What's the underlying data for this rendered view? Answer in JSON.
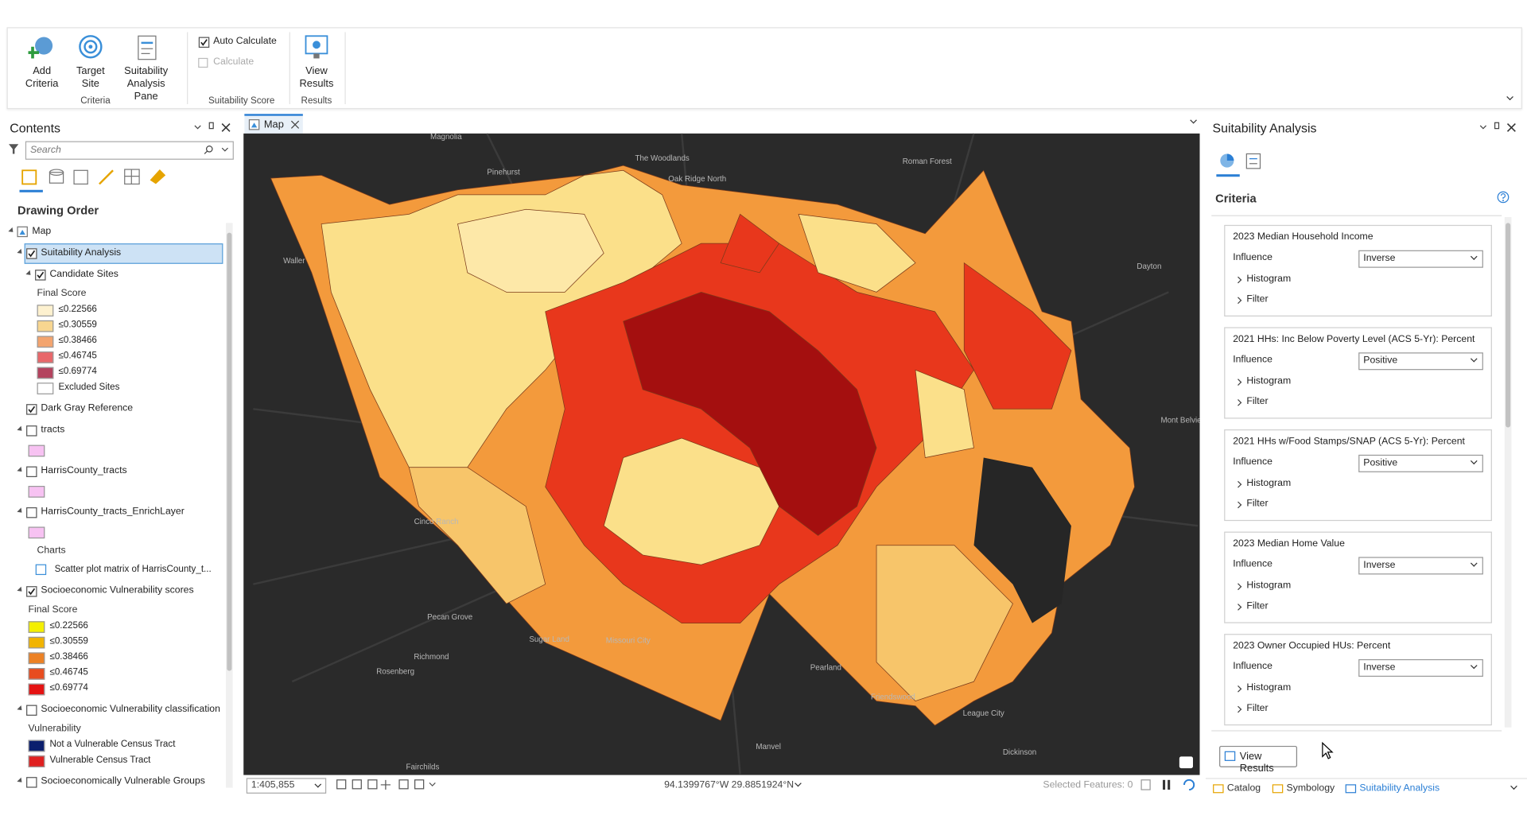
{
  "ribbon": {
    "groups": [
      {
        "label": "Criteria",
        "buttons": [
          "Add Criteria",
          "Target Site",
          "Suitability Analysis Pane"
        ]
      },
      {
        "label": "Suitability Score",
        "auto_calculate": {
          "text": "Auto Calculate",
          "checked": true
        },
        "calculate": {
          "text": "Calculate",
          "enabled": false
        }
      },
      {
        "label": "Results",
        "buttons": [
          "View Results"
        ]
      }
    ]
  },
  "contents": {
    "title": "Contents",
    "search_placeholder": "Search",
    "drawing_order": "Drawing Order",
    "items": [
      {
        "kind": "map",
        "label": "Map",
        "level": 0
      },
      {
        "kind": "layer",
        "label": "Suitability Analysis",
        "level": 1,
        "checked": true,
        "expanded": true,
        "selected": true
      },
      {
        "kind": "layer",
        "label": "Candidate Sites",
        "level": 2,
        "checked": true,
        "expanded": true
      },
      {
        "kind": "heading",
        "label": "Final Score",
        "level": 2
      },
      {
        "kind": "legend",
        "label": "≤0.22566",
        "level": 2,
        "color": "#fdf1cf"
      },
      {
        "kind": "legend",
        "label": "≤0.30559",
        "level": 2,
        "color": "#f8d690"
      },
      {
        "kind": "legend",
        "label": "≤0.38466",
        "level": 2,
        "color": "#f3a46e"
      },
      {
        "kind": "legend",
        "label": "≤0.46745",
        "level": 2,
        "color": "#e8676a"
      },
      {
        "kind": "legend",
        "label": "≤0.69774",
        "level": 2,
        "color": "#b4425e"
      },
      {
        "kind": "legend",
        "label": "Excluded Sites",
        "level": 2,
        "color": "#ffffff"
      },
      {
        "kind": "layer",
        "label": "Dark Gray Reference",
        "level": 1,
        "checked": true
      },
      {
        "kind": "layer",
        "label": "tracts",
        "level": 1,
        "checked": false,
        "expanded": true
      },
      {
        "kind": "swatch",
        "level": 1,
        "color": "#f7c2f2"
      },
      {
        "kind": "layer",
        "label": "HarrisCounty_tracts",
        "level": 1,
        "checked": false,
        "expanded": true
      },
      {
        "kind": "swatch",
        "level": 1,
        "color": "#f7c2f2"
      },
      {
        "kind": "layer",
        "label": "HarrisCounty_tracts_EnrichLayer",
        "level": 1,
        "checked": false,
        "expanded": true
      },
      {
        "kind": "swatch",
        "level": 1,
        "color": "#f7c2f2"
      },
      {
        "kind": "heading",
        "label": "Charts",
        "level": 2
      },
      {
        "kind": "chart",
        "label": "Scatter plot matrix of HarrisCounty_t...",
        "level": 2
      },
      {
        "kind": "layer",
        "label": "Socioeconomic Vulnerability scores",
        "level": 1,
        "checked": true,
        "expanded": true
      },
      {
        "kind": "heading",
        "label": "Final Score",
        "level": 1
      },
      {
        "kind": "legend",
        "label": "≤0.22566",
        "level": 1,
        "color": "#f4ef00"
      },
      {
        "kind": "legend",
        "label": "≤0.30559",
        "level": 1,
        "color": "#f1b400"
      },
      {
        "kind": "legend",
        "label": "≤0.38466",
        "level": 1,
        "color": "#ec8124"
      },
      {
        "kind": "legend",
        "label": "≤0.46745",
        "level": 1,
        "color": "#e84c1f"
      },
      {
        "kind": "legend",
        "label": "≤0.69774",
        "level": 1,
        "color": "#e51212"
      },
      {
        "kind": "layer",
        "label": "Socioeconomic Vulnerability classification",
        "level": 1,
        "checked": false,
        "expanded": true
      },
      {
        "kind": "heading",
        "label": "Vulnerability",
        "level": 1
      },
      {
        "kind": "legend",
        "label": "Not a Vulnerable Census Tract",
        "level": 1,
        "color": "#0b1f6e"
      },
      {
        "kind": "legend",
        "label": "Vulnerable Census Tract",
        "level": 1,
        "color": "#e02020"
      },
      {
        "kind": "layer",
        "label": "Socioeconomically Vulnerable Groups",
        "level": 1,
        "checked": false,
        "expanded": true
      }
    ]
  },
  "map": {
    "tab": "Map",
    "places": [
      "Magnolia",
      "The Woodlands",
      "Oak Ridge North",
      "Roman Forest",
      "Pinehurst",
      "Waller",
      "Dayton",
      "Mont Belvieu",
      "Cinco Ranch",
      "Pecan Grove",
      "Sugar Land",
      "Missouri City",
      "Richmond",
      "Rosenberg",
      "Pearland",
      "Friendswood",
      "League City",
      "Manvel",
      "Dickinson",
      "Fairchilds"
    ],
    "scale": "1:405,855",
    "coordinates": "94.1399767°W 29.8851924°N",
    "selected_features": "Selected Features: 0"
  },
  "suitability_pane": {
    "title": "Suitability Analysis",
    "section": "Criteria",
    "influence_label": "Influence",
    "histogram_label": "Histogram",
    "filter_label": "Filter",
    "criteria": [
      {
        "name": "2023 Median Household Income",
        "influence": "Inverse"
      },
      {
        "name": "2021 HHs: Inc Below Poverty Level (ACS 5-Yr): Percent",
        "influence": "Positive"
      },
      {
        "name": "2021 HHs w/Food Stamps/SNAP (ACS 5-Yr): Percent",
        "influence": "Positive"
      },
      {
        "name": "2023 Median Home Value",
        "influence": "Inverse"
      },
      {
        "name": "2023 Owner Occupied HUs: Percent",
        "influence": "Inverse"
      }
    ],
    "button": "View Results"
  },
  "bottom_tabs": [
    {
      "text": "Catalog",
      "active": false
    },
    {
      "text": "Symbology",
      "active": false
    },
    {
      "text": "Suitability Analysis",
      "active": true
    }
  ]
}
